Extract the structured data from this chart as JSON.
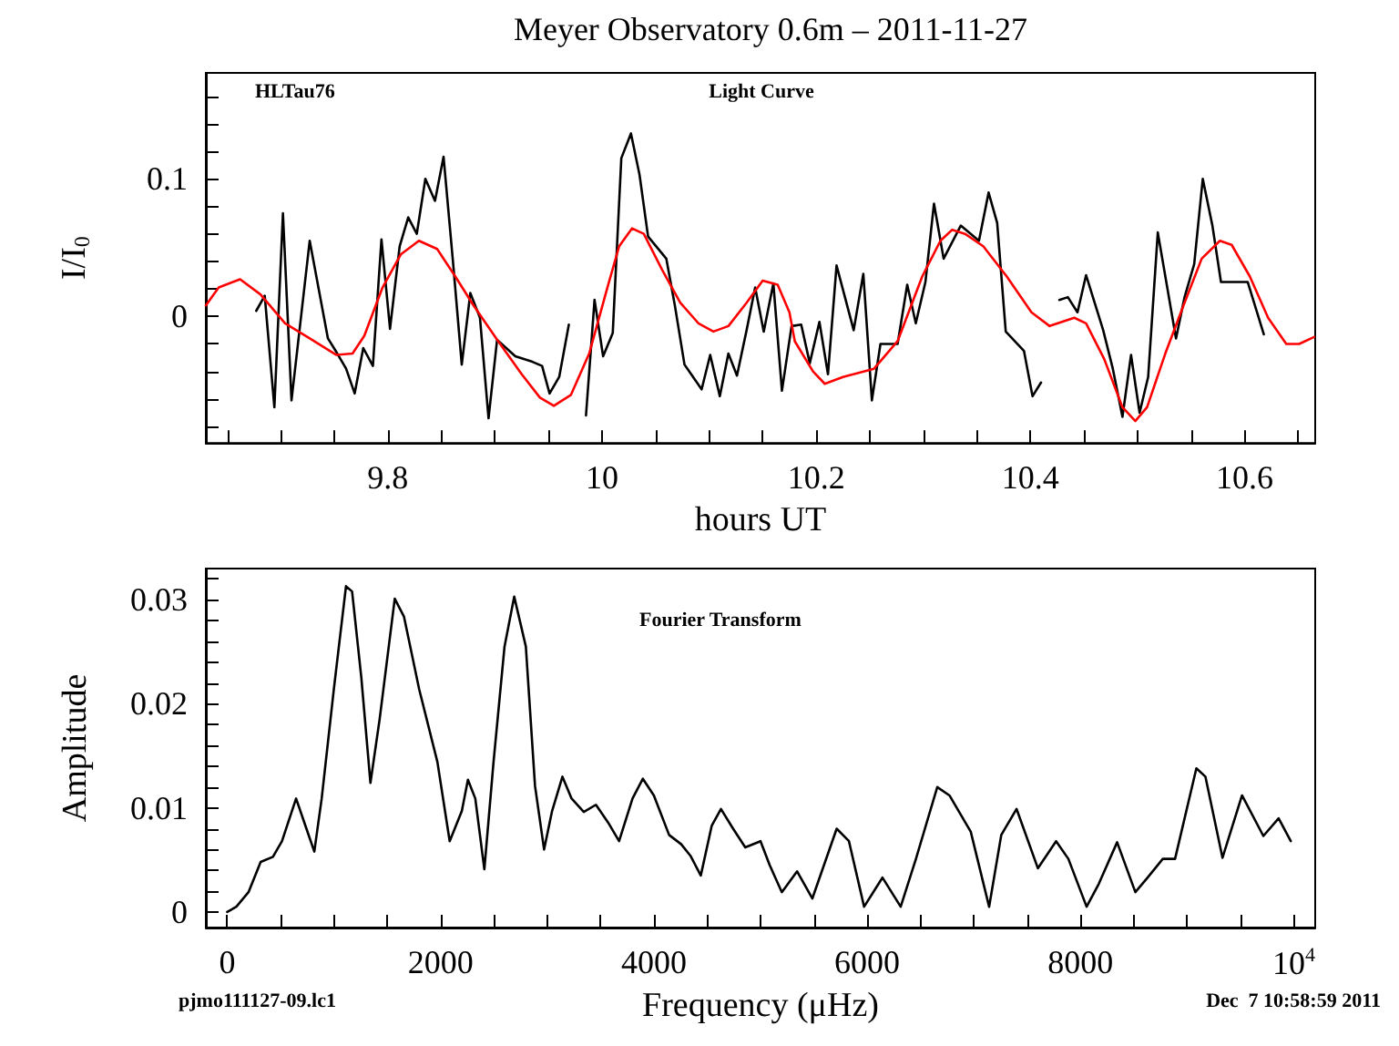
{
  "chart_data": [
    {
      "type": "line",
      "title": "Meyer Observatory 0.6m – 2011-11-27",
      "xlabel": "hours UT",
      "ylabel": "I/I$_{0}$",
      "annotations": [
        "HLTau76",
        "Light Curve"
      ],
      "marker": "none",
      "line_style": "solid",
      "grid": false,
      "xlim": [
        9.63,
        10.666
      ],
      "ylim": [
        -0.092,
        0.177
      ],
      "xticks": [
        {
          "value": 9.65,
          "label": null
        },
        {
          "value": 9.7,
          "label": null
        },
        {
          "value": 9.75,
          "label": null
        },
        9.8,
        {
          "value": 9.85,
          "label": null
        },
        {
          "value": 9.9,
          "label": null
        },
        {
          "value": 9.95,
          "label": null
        },
        10,
        {
          "value": 10.05,
          "label": null
        },
        {
          "value": 10.1,
          "label": null
        },
        {
          "value": 10.15,
          "label": null
        },
        10.2,
        {
          "value": 10.25,
          "label": null
        },
        {
          "value": 10.3,
          "label": null
        },
        {
          "value": 10.35,
          "label": null
        },
        10.4,
        {
          "value": 10.45,
          "label": null
        },
        {
          "value": 10.5,
          "label": null
        },
        {
          "value": 10.55,
          "label": null
        },
        10.6,
        {
          "value": 10.65,
          "label": null
        }
      ],
      "yticks": [
        {
          "value": -0.08,
          "label": null
        },
        {
          "value": -0.06,
          "label": null
        },
        {
          "value": -0.04,
          "label": null
        },
        {
          "value": -0.02,
          "label": null
        },
        0,
        {
          "value": 0.02,
          "label": null
        },
        {
          "value": 0.04,
          "label": null
        },
        {
          "value": 0.06,
          "label": null
        },
        {
          "value": 0.08,
          "label": null
        },
        0.1,
        {
          "value": 0.12,
          "label": null
        },
        {
          "value": 0.14,
          "label": null
        },
        {
          "value": 0.16,
          "label": null
        }
      ],
      "series": [
        {
          "color": "#000000",
          "x": [
            9.677,
            9.685,
            9.694,
            9.702,
            9.71,
            9.727,
            9.744,
            9.752,
            9.761,
            9.769,
            9.777,
            9.786,
            9.794,
            9.802,
            9.811,
            9.819,
            9.827,
            9.835,
            9.844,
            9.852,
            9.861,
            9.869,
            9.877,
            9.886,
            9.894,
            9.902,
            9.919,
            9.935,
            9.944,
            9.951,
            9.96,
            9.969,
            9.976,
            9.985,
            9.993,
            10.001,
            10.01,
            10.018,
            10.027,
            10.035,
            10.043,
            10.06,
            10.068,
            10.077,
            10.093,
            10.101,
            10.11,
            10.118,
            10.126,
            10.135,
            10.143,
            10.151,
            10.16,
            10.168,
            10.177,
            10.186,
            10.194,
            10.203,
            10.211,
            10.219,
            10.235,
            10.244,
            10.252,
            10.26,
            10.276,
            10.285,
            10.293,
            10.302,
            10.31,
            10.319,
            10.335,
            10.352,
            10.361,
            10.369,
            10.377,
            10.394,
            10.402,
            10.41,
            10.419,
            10.427,
            10.435,
            10.444,
            10.452,
            10.46,
            10.468,
            10.477,
            10.486,
            10.494,
            10.502,
            10.51,
            10.519,
            10.536,
            10.544,
            10.553,
            10.561,
            10.57,
            10.578,
            10.603,
            10.618
          ],
          "values": [
            0.004,
            0.015,
            -0.066,
            0.075,
            -0.061,
            0.055,
            -0.016,
            -0.026,
            -0.038,
            -0.056,
            -0.023,
            -0.036,
            0.056,
            -0.009,
            0.051,
            0.072,
            0.06,
            0.1,
            0.084,
            0.116,
            0.038,
            -0.035,
            0.017,
            -0.001,
            -0.074,
            -0.017,
            -0.029,
            -0.033,
            -0.036,
            -0.056,
            -0.044,
            -0.006,
            null,
            -0.072,
            0.012,
            -0.029,
            -0.012,
            0.115,
            0.133,
            0.103,
            0.058,
            0.042,
            0.008,
            -0.035,
            -0.053,
            -0.028,
            -0.058,
            -0.027,
            -0.043,
            -0.01,
            0.021,
            -0.011,
            0.024,
            -0.054,
            -0.007,
            -0.006,
            -0.034,
            -0.004,
            -0.042,
            0.037,
            -0.01,
            0.031,
            -0.061,
            -0.02,
            -0.02,
            0.023,
            -0.005,
            0.025,
            0.082,
            0.042,
            0.066,
            0.055,
            0.09,
            0.068,
            -0.011,
            -0.025,
            -0.058,
            -0.048,
            null,
            0.012,
            0.014,
            0.003,
            0.03,
            0.01,
            -0.01,
            -0.038,
            -0.073,
            -0.028,
            -0.07,
            -0.044,
            0.061,
            -0.016,
            0.014,
            0.038,
            0.1,
            0.066,
            0.025,
            0.025,
            -0.013
          ]
        },
        {
          "color": "#ff0000",
          "x": [
            9.63,
            9.642,
            9.662,
            9.681,
            9.704,
            9.727,
            9.752,
            9.767,
            9.778,
            9.795,
            9.812,
            9.829,
            9.846,
            9.863,
            9.88,
            9.903,
            9.925,
            9.942,
            9.955,
            9.971,
            9.988,
            10.005,
            10.016,
            10.028,
            10.039,
            10.056,
            10.073,
            10.09,
            10.104,
            10.118,
            10.135,
            10.15,
            10.164,
            10.175,
            10.18,
            10.197,
            10.208,
            10.225,
            10.254,
            10.276,
            10.299,
            10.316,
            10.327,
            10.339,
            10.356,
            10.378,
            10.401,
            10.418,
            10.441,
            10.452,
            10.469,
            10.486,
            10.498,
            10.509,
            10.526,
            10.543,
            10.56,
            10.577,
            10.588,
            10.605,
            10.622,
            10.639,
            10.651,
            10.665
          ],
          "values": [
            0.008,
            0.021,
            0.027,
            0.016,
            -0.005,
            -0.016,
            -0.028,
            -0.027,
            -0.014,
            0.021,
            0.045,
            0.055,
            0.049,
            0.029,
            0.008,
            -0.018,
            -0.042,
            -0.059,
            -0.065,
            -0.057,
            -0.027,
            0.021,
            0.051,
            0.064,
            0.06,
            0.034,
            0.01,
            -0.005,
            -0.011,
            -0.007,
            0.01,
            0.026,
            0.023,
            0.003,
            -0.018,
            -0.04,
            -0.049,
            -0.044,
            -0.038,
            -0.018,
            0.029,
            0.055,
            0.063,
            0.06,
            0.051,
            0.029,
            0.003,
            -0.007,
            -0.001,
            -0.005,
            -0.031,
            -0.066,
            -0.076,
            -0.066,
            -0.027,
            0.008,
            0.042,
            0.055,
            0.052,
            0.029,
            -0.001,
            -0.02,
            -0.02,
            -0.015
          ]
        }
      ]
    },
    {
      "type": "line",
      "xlabel": "Frequency (μHz)",
      "ylabel": "Amplitude",
      "annotations": [
        "Fourier Transform",
        "pjmo111127-09.lc1",
        "Dec  7 10:58:59 2011"
      ],
      "marker": "none",
      "line_style": "solid",
      "grid": false,
      "xlim": [
        -200,
        10200
      ],
      "ylim": [
        -0.0015,
        0.033
      ],
      "xticks": [
        0,
        {
          "value": 500,
          "label": null
        },
        {
          "value": 1000,
          "label": null
        },
        {
          "value": 1500,
          "label": null
        },
        2000,
        {
          "value": 2500,
          "label": null
        },
        {
          "value": 3000,
          "label": null
        },
        {
          "value": 3500,
          "label": null
        },
        4000,
        {
          "value": 4500,
          "label": null
        },
        {
          "value": 5000,
          "label": null
        },
        {
          "value": 5500,
          "label": null
        },
        6000,
        {
          "value": 6500,
          "label": null
        },
        {
          "value": 7000,
          "label": null
        },
        {
          "value": 7500,
          "label": null
        },
        8000,
        {
          "value": 8500,
          "label": null
        },
        {
          "value": 9000,
          "label": null
        },
        {
          "value": 9500,
          "label": null
        },
        {
          "value": 10000,
          "label": "10$^{4}$"
        }
      ],
      "yticks": [
        0,
        {
          "value": 0.002,
          "label": null
        },
        {
          "value": 0.004,
          "label": null
        },
        {
          "value": 0.006,
          "label": null
        },
        {
          "value": 0.008,
          "label": null
        },
        0.01,
        {
          "value": 0.012,
          "label": null
        },
        {
          "value": 0.014,
          "label": null
        },
        {
          "value": 0.016,
          "label": null
        },
        {
          "value": 0.018,
          "label": null
        },
        0.02,
        {
          "value": 0.022,
          "label": null
        },
        {
          "value": 0.024,
          "label": null
        },
        {
          "value": 0.026,
          "label": null
        },
        {
          "value": 0.028,
          "label": null
        },
        0.03,
        {
          "value": 0.032,
          "label": null
        }
      ],
      "series": [
        {
          "color": "#000000",
          "x": [
            0,
            86,
            200,
            314,
            429,
            514,
            646,
            743,
            817,
            886,
            1000,
            1114,
            1171,
            1257,
            1343,
            1429,
            1571,
            1657,
            1800,
            1971,
            2086,
            2200,
            2257,
            2326,
            2411,
            2497,
            2600,
            2691,
            2800,
            2886,
            2971,
            3046,
            3143,
            3229,
            3343,
            3457,
            3571,
            3674,
            3800,
            3897,
            4000,
            4143,
            4257,
            4343,
            4440,
            4543,
            4629,
            4743,
            4857,
            5000,
            5086,
            5200,
            5343,
            5486,
            5714,
            5829,
            5971,
            6143,
            6314,
            6457,
            6657,
            6771,
            6971,
            7143,
            7257,
            7400,
            7600,
            7771,
            7886,
            8057,
            8171,
            8343,
            8514,
            8629,
            8771,
            8886,
            9086,
            9171,
            9331,
            9514,
            9714,
            9857,
            9971
          ],
          "values": [
            0,
            0.0005,
            0.0019,
            0.0048,
            0.0053,
            0.0068,
            0.0109,
            0.008,
            0.0058,
            0.0109,
            0.0214,
            0.0313,
            0.0308,
            0.0226,
            0.0124,
            0.0185,
            0.0301,
            0.0284,
            0.0214,
            0.0144,
            0.0068,
            0.0097,
            0.0127,
            0.0109,
            0.0041,
            0.0144,
            0.0255,
            0.0303,
            0.0255,
            0.0121,
            0.006,
            0.0097,
            0.013,
            0.0109,
            0.0096,
            0.0103,
            0.0086,
            0.0068,
            0.0109,
            0.0128,
            0.0112,
            0.0074,
            0.0065,
            0.0054,
            0.0035,
            0.0083,
            0.0099,
            0.008,
            0.0062,
            0.0068,
            0.0045,
            0.0019,
            0.0039,
            0.0013,
            0.008,
            0.0068,
            0.0005,
            0.0033,
            0.0005,
            0.0051,
            0.012,
            0.0112,
            0.0077,
            0.0005,
            0.0074,
            0.0099,
            0.0042,
            0.0068,
            0.0051,
            0.0005,
            0.0027,
            0.0067,
            0.0019,
            0.0033,
            0.0051,
            0.0051,
            0.0138,
            0.013,
            0.0052,
            0.0112,
            0.0073,
            0.009,
            0.0068
          ]
        }
      ]
    }
  ]
}
